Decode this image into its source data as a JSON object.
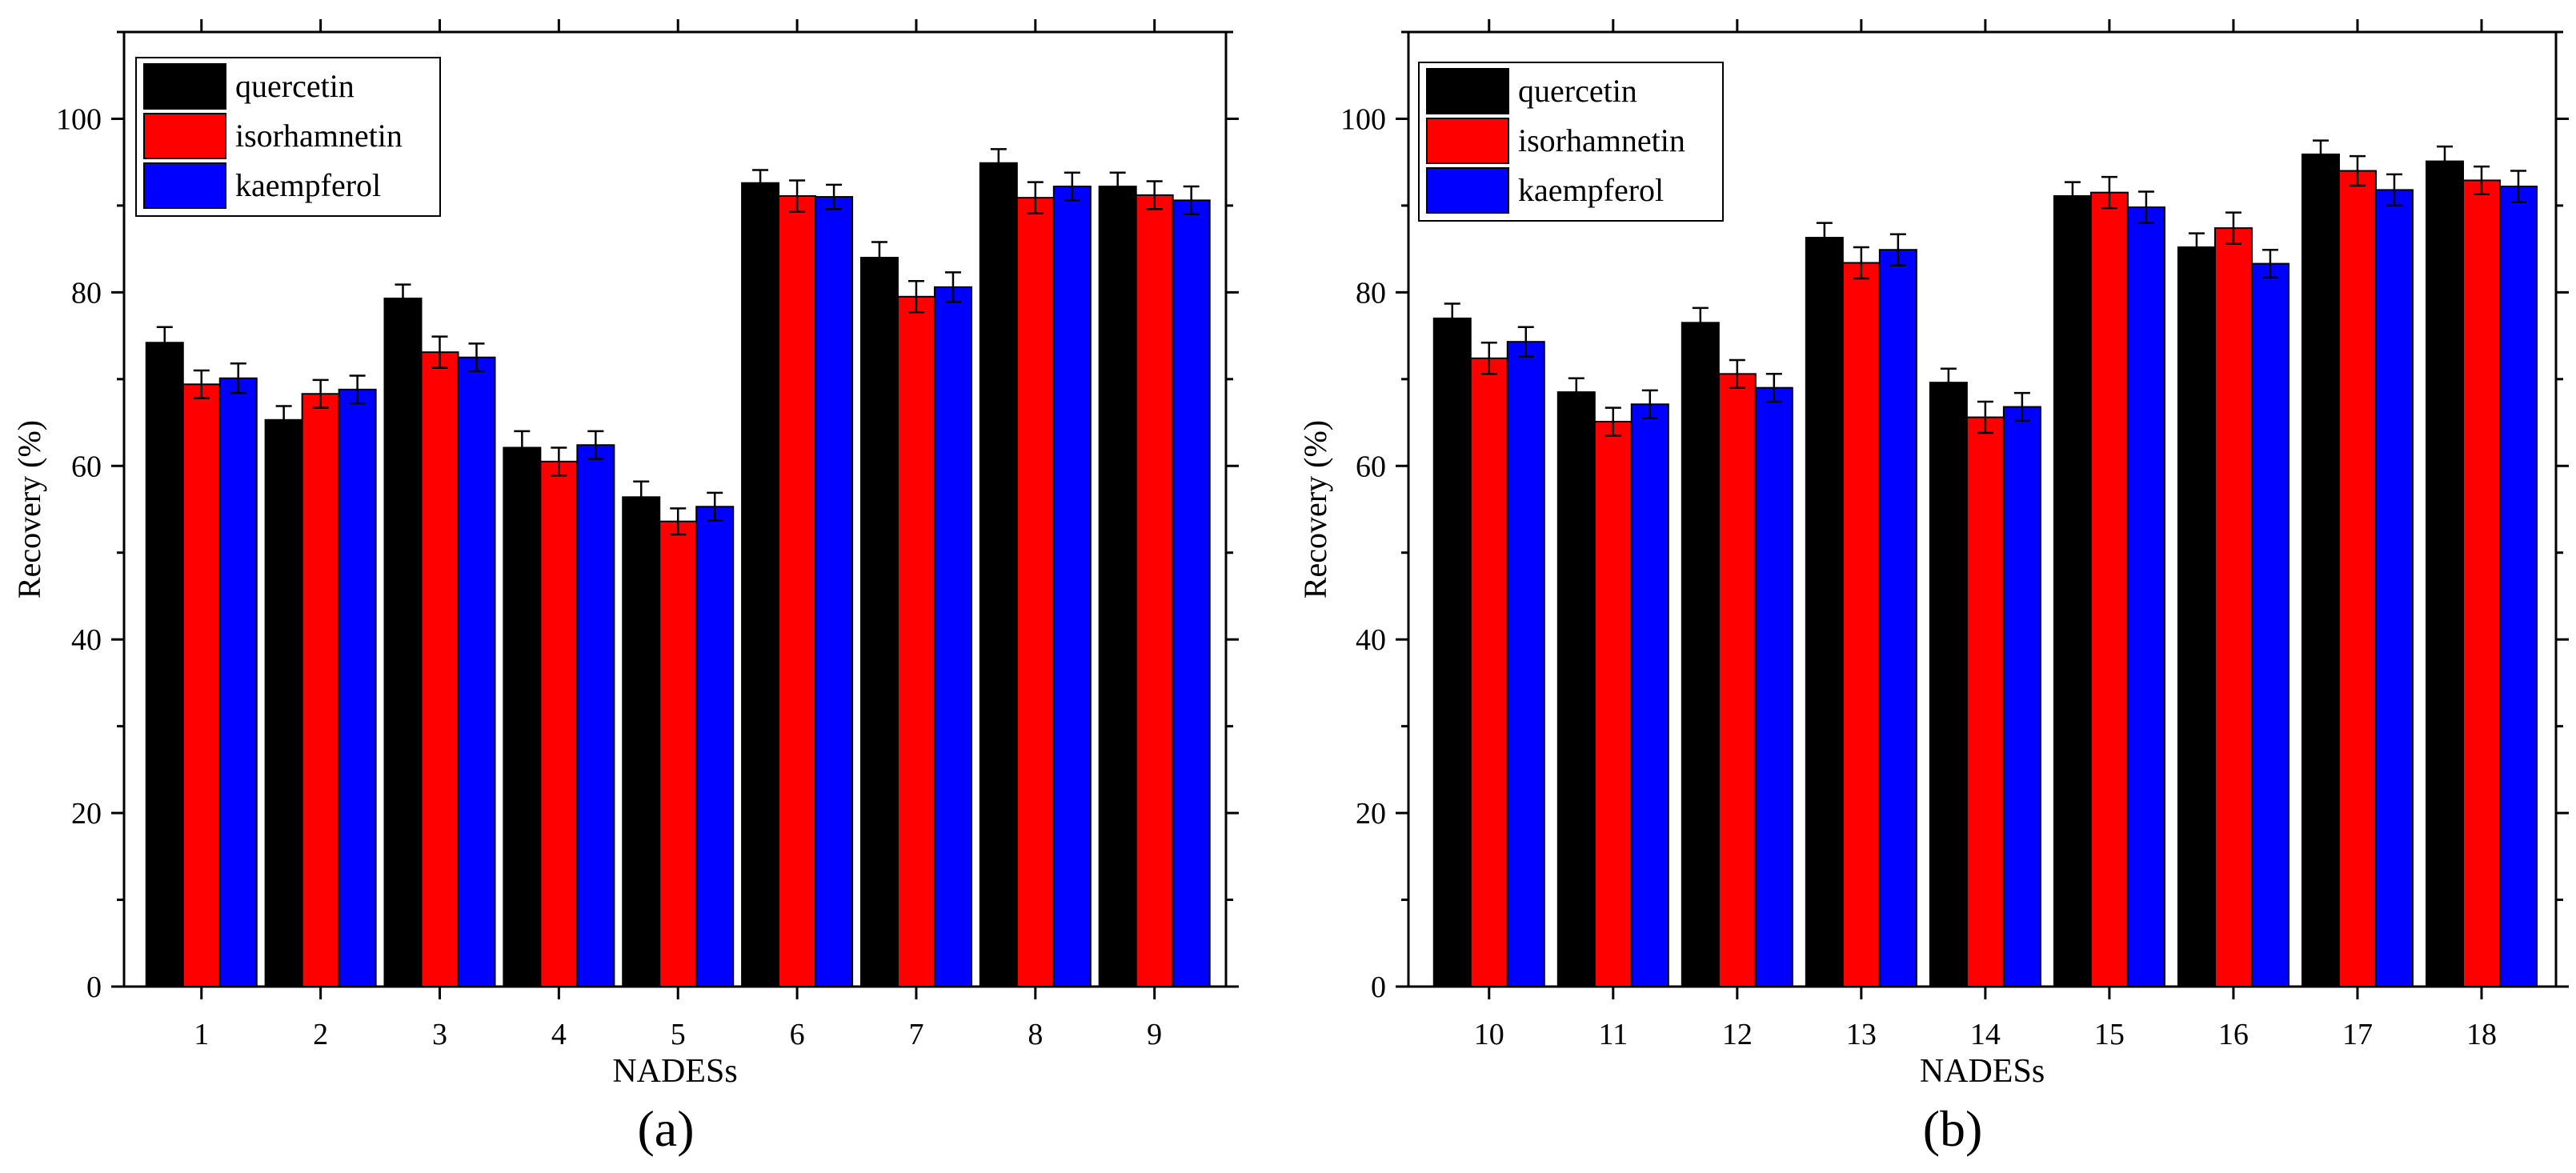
{
  "chart_data": [
    {
      "type": "bar",
      "panel_label": "(a)",
      "xlabel": "NADESs",
      "ylabel": "Recovery (%)",
      "ylim": [
        0,
        110
      ],
      "yticks": [
        "0",
        "20",
        "40",
        "60",
        "80",
        "100"
      ],
      "categories": [
        "1",
        "2",
        "3",
        "4",
        "5",
        "6",
        "7",
        "8",
        "9"
      ],
      "legend_position": "top-left",
      "series": [
        {
          "name": "quercetin",
          "color": "#000000",
          "values": [
            74.2,
            65.3,
            79.3,
            62.1,
            56.4,
            92.6,
            84.0,
            94.9,
            92.2
          ],
          "errors": [
            1.8,
            1.6,
            1.6,
            1.9,
            1.8,
            1.5,
            1.8,
            1.6,
            1.6
          ]
        },
        {
          "name": "isorhamnetin",
          "color": "#ff0000",
          "values": [
            69.4,
            68.3,
            73.1,
            60.5,
            53.6,
            91.1,
            79.5,
            90.9,
            91.2
          ],
          "errors": [
            1.6,
            1.6,
            1.8,
            1.6,
            1.5,
            1.8,
            1.8,
            1.8,
            1.6
          ]
        },
        {
          "name": "kaempferol",
          "color": "#0000ff",
          "values": [
            70.1,
            68.8,
            72.5,
            62.4,
            55.3,
            91.0,
            80.6,
            92.2,
            90.6
          ],
          "errors": [
            1.7,
            1.6,
            1.6,
            1.6,
            1.6,
            1.4,
            1.7,
            1.6,
            1.6
          ]
        }
      ]
    },
    {
      "type": "bar",
      "panel_label": "(b)",
      "xlabel": "NADESs",
      "ylabel": "Recovery (%)",
      "ylim": [
        0,
        110
      ],
      "yticks": [
        "0",
        "20",
        "40",
        "60",
        "80",
        "100"
      ],
      "categories": [
        "10",
        "11",
        "12",
        "13",
        "14",
        "15",
        "16",
        "17",
        "18"
      ],
      "legend_position": "top-left",
      "series": [
        {
          "name": "quercetin",
          "color": "#000000",
          "values": [
            77.0,
            68.5,
            76.5,
            86.3,
            69.6,
            91.1,
            85.2,
            95.9,
            95.1
          ],
          "errors": [
            1.7,
            1.6,
            1.7,
            1.7,
            1.6,
            1.6,
            1.6,
            1.6,
            1.7
          ]
        },
        {
          "name": "isorhamnetin",
          "color": "#ff0000",
          "values": [
            72.4,
            65.1,
            70.6,
            83.4,
            65.6,
            91.5,
            87.4,
            94.0,
            92.9
          ],
          "errors": [
            1.8,
            1.6,
            1.6,
            1.8,
            1.8,
            1.8,
            1.8,
            1.7,
            1.6
          ]
        },
        {
          "name": "kaempferol",
          "color": "#0000ff",
          "values": [
            74.3,
            67.1,
            69.0,
            84.9,
            66.8,
            89.8,
            83.3,
            91.8,
            92.2
          ],
          "errors": [
            1.7,
            1.6,
            1.6,
            1.8,
            1.6,
            1.8,
            1.6,
            1.8,
            1.8
          ]
        }
      ]
    }
  ]
}
